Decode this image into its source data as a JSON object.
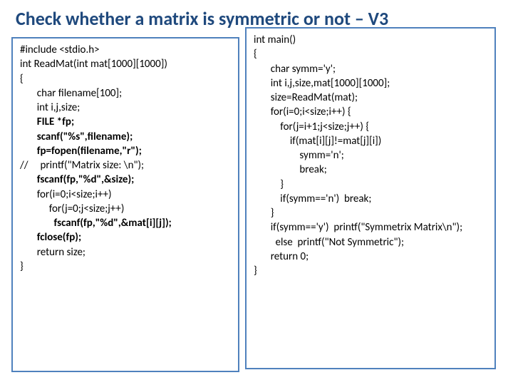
{
  "title": "Check whether a matrix is symmetric or not – V3",
  "title_color": "#1f497d",
  "border_color": "#4f81bd",
  "left": {
    "l1": "#include <stdio.h>",
    "l2": "int ReadMat(int mat[1000][1000])",
    "l3": "{",
    "l4": "       char filename[100];",
    "l5": "       int i,j,size;",
    "l6_pre": "       ",
    "l6_bold": "FILE *fp;",
    "l7_pre": "       ",
    "l7_bold": "scanf(\"%s\",filename);",
    "l8_pre": "       ",
    "l8_bold": "fp=fopen(filename,\"r\");",
    "l9_pre": "//     ",
    "l9": "printf(\"Matrix size: \\n\");",
    "l10_pre": "       ",
    "l10_bold": "fscanf(fp,\"%d\",&size);",
    "l11": "       for(i=0;i<size;i++)",
    "l12": "            for(j=0;j<size;j++)",
    "l13_pre": "              ",
    "l13_bold": "fscanf(fp,\"%d\",&mat[i][j]);",
    "blank1": "",
    "l14_pre": "       ",
    "l14_bold": "fclose(fp);",
    "l15": "       return size;",
    "l16": "}"
  },
  "right": {
    "r1": "int main()",
    "r2": "{",
    "r3": "       char symm='y';",
    "r4": "       int i,j,size,mat[1000][1000];",
    "blank1": "",
    "r5": "       size=ReadMat(mat);",
    "r6": "       for(i=0;i<size;i++) {",
    "r7": "           for(j=i+1;j<size;j++) {",
    "r8": "               if(mat[i][j]!=mat[j][i])",
    "r9": "                   symm='n';",
    "r10": "                   break;",
    "r11": "           }",
    "r12": "           if(symm=='n')  break;",
    "r13": "       }",
    "r14": "       if(symm=='y')  printf(\"Symmetrix Matrix\\n\");",
    "r15": "         else  printf(\"Not Symmetric\");",
    "r16": "       return 0;",
    "r17": "}"
  }
}
